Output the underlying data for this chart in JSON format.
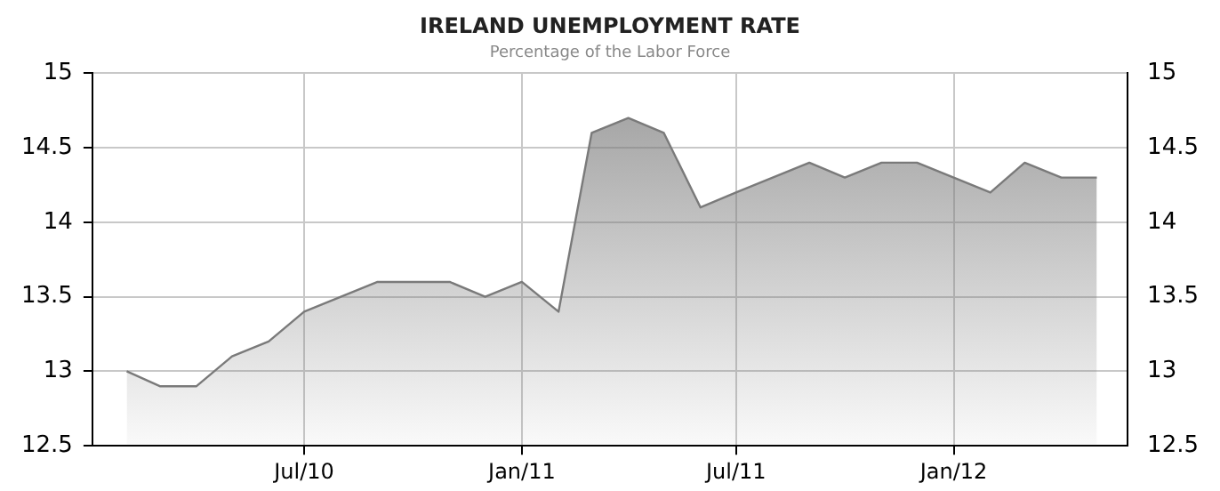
{
  "chart_data": {
    "type": "area",
    "title": "IRELAND UNEMPLOYMENT RATE",
    "subtitle": "Percentage of the Labor Force",
    "x": [
      "2010-02",
      "2010-03",
      "2010-04",
      "2010-05",
      "2010-06",
      "2010-07",
      "2010-08",
      "2010-09",
      "2010-10",
      "2010-11",
      "2010-12",
      "2011-01",
      "2011-02",
      "2011-03",
      "2011-04",
      "2011-05",
      "2011-06",
      "2011-07",
      "2011-08",
      "2011-09",
      "2011-10",
      "2011-11",
      "2011-12",
      "2012-01",
      "2012-02",
      "2012-03",
      "2012-04",
      "2012-05"
    ],
    "values": [
      13.0,
      12.9,
      12.9,
      13.1,
      13.2,
      13.4,
      13.5,
      13.6,
      13.6,
      13.6,
      13.5,
      13.6,
      13.4,
      14.6,
      14.7,
      14.6,
      14.1,
      14.2,
      14.3,
      14.4,
      14.3,
      14.4,
      14.4,
      14.3,
      14.2,
      14.4,
      14.3,
      14.3
    ],
    "color": "#7a7a7a",
    "xlim": [
      "2010-01-03",
      "2012-05-27"
    ],
    "xticks": [
      {
        "value": "2010-07",
        "label": "Jul/10"
      },
      {
        "value": "2011-01",
        "label": "Jan/11"
      },
      {
        "value": "2011-07",
        "label": "Jul/11"
      },
      {
        "value": "2012-01",
        "label": "Jan/12"
      }
    ],
    "ylim": [
      12.5,
      15
    ],
    "yticks": [
      12.5,
      13,
      13.5,
      14,
      14.5,
      15
    ],
    "y2lim": [
      12.5,
      15
    ],
    "y2ticks": [
      12.5,
      13,
      13.5,
      14,
      14.5,
      15
    ],
    "grid": true,
    "legend": false
  }
}
